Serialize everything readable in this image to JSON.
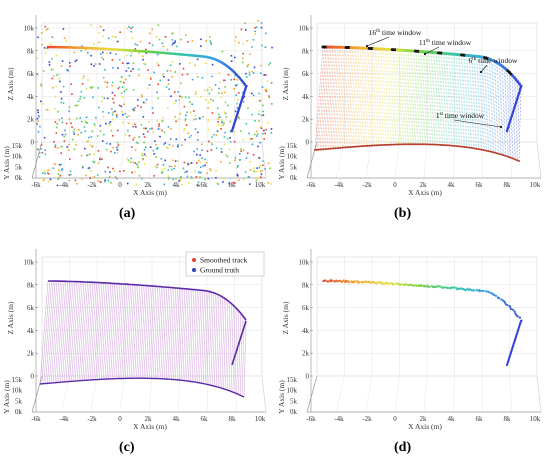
{
  "chart_data": [
    {
      "type": "scatter",
      "label": "(a)",
      "xlabel": "X Axis (m)",
      "ylabel": "Z Axis (m)",
      "depth_label": "Y Axis (m)",
      "x_ticks": [
        "-6k",
        "-4k",
        "-2k",
        "0",
        "2k",
        "4k",
        "6k",
        "8k",
        "10k"
      ],
      "z_ticks": [
        "0",
        "2k",
        "4k",
        "6k",
        "8k",
        "10k"
      ],
      "depth_ticks": [
        "0k",
        "5k",
        "10k",
        "15k"
      ],
      "x_range": [
        -6000,
        10000
      ],
      "z_range": [
        0,
        10000
      ],
      "grid": true,
      "content": "noisy measurements with colored track"
    },
    {
      "type": "scatter",
      "label": "(b)",
      "xlabel": "X Axis (m)",
      "ylabel": "Z Axis (m)",
      "depth_label": "Y Axis (m)",
      "x_ticks": [
        "-6k",
        "-4k",
        "-2k",
        "0",
        "2k",
        "4k",
        "6k",
        "8k",
        "10k"
      ],
      "z_ticks": [
        "0",
        "2k",
        "4k",
        "6k",
        "8k",
        "10k"
      ],
      "depth_ticks": [
        "0k",
        "5k",
        "10k",
        "15k"
      ],
      "annotations": [
        {
          "base": "16",
          "sup": "th",
          "rest": " time window"
        },
        {
          "base": "11",
          "sup": "th",
          "rest": " time window"
        },
        {
          "base": "6",
          "sup": "th",
          "rest": " time window"
        },
        {
          "base": "1",
          "sup": "st",
          "rest": " time window"
        }
      ],
      "x_range": [
        -6000,
        10000
      ],
      "z_range": [
        0,
        10000
      ],
      "grid": true
    },
    {
      "type": "line",
      "label": "(c)",
      "xlabel": "X Axis (m)",
      "ylabel": "Z Axis (m)",
      "depth_label": "Y Axis (m)",
      "x_ticks": [
        "-6k",
        "-4k",
        "-2k",
        "0",
        "2k",
        "4k",
        "6k",
        "8k",
        "10k"
      ],
      "z_ticks": [
        "0",
        "2k",
        "4k",
        "6k",
        "8k",
        "10k"
      ],
      "depth_ticks": [
        "0k",
        "5k",
        "10k",
        "15k"
      ],
      "legend_position": "top-right",
      "series": [
        {
          "name": "Smoothed track",
          "color": "#e8412f"
        },
        {
          "name": "Ground truth",
          "color": "#2f3fbf"
        }
      ],
      "x_range": [
        -6000,
        10000
      ],
      "z_range": [
        0,
        10000
      ],
      "grid": true
    },
    {
      "type": "scatter",
      "label": "(d)",
      "xlabel": "X Axis (m)",
      "ylabel": "Z Axis (m)",
      "depth_label": "Y Axis (m)",
      "x_ticks": [
        "-6k",
        "-4k",
        "-2k",
        "0",
        "2k",
        "4k",
        "6k",
        "8k",
        "10k"
      ],
      "z_ticks": [
        "0",
        "2k",
        "4k",
        "6k",
        "8k",
        "10k"
      ],
      "depth_ticks": [
        "0k",
        "5k",
        "10k",
        "15k"
      ],
      "x_range": [
        -6000,
        10000
      ],
      "z_range": [
        0,
        10000
      ],
      "grid": true
    }
  ],
  "track_colors": [
    "#e8412f",
    "#f3a52c",
    "#e7e040",
    "#6fd13f",
    "#34c7a6",
    "#3aa0e8",
    "#3445d6"
  ],
  "ground_truth_color": "#5b2aa8",
  "dropline_color": "#c68bd0"
}
